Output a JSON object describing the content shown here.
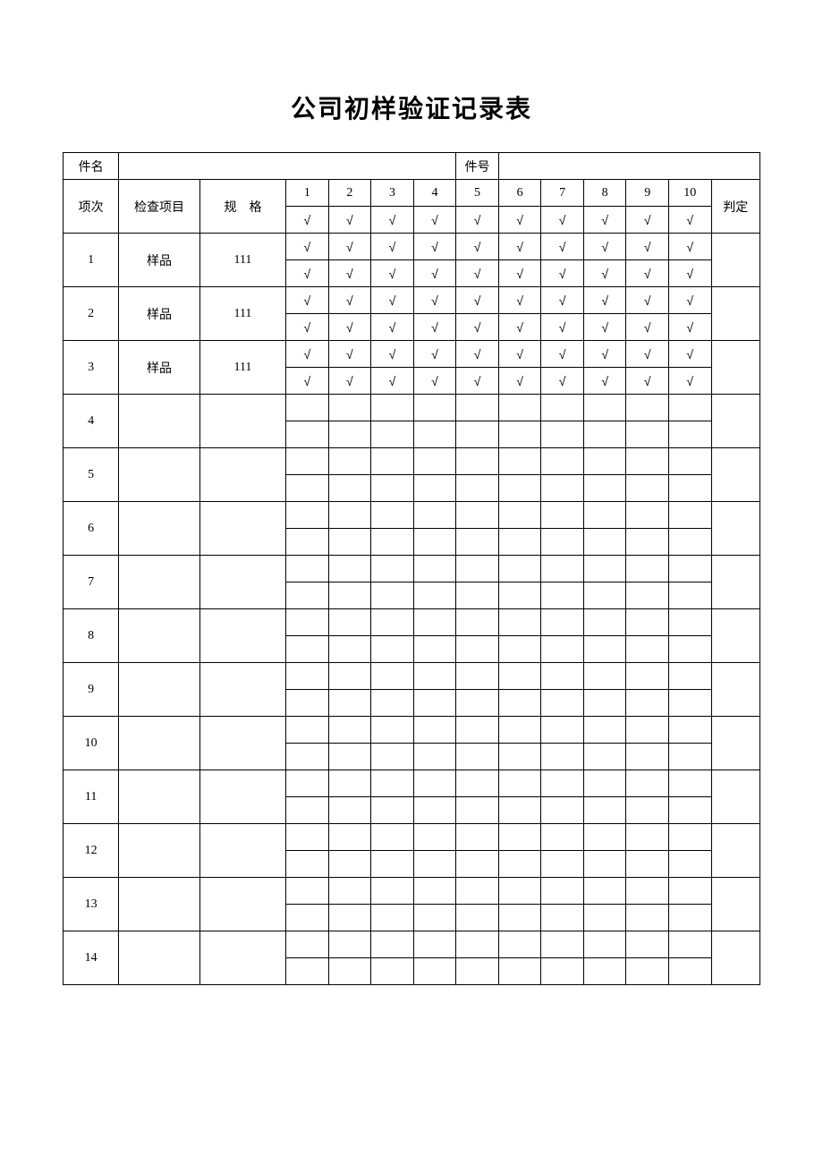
{
  "title": "公司初样验证记录表",
  "header": {
    "part_name_label": "件名",
    "part_no_label": "件号",
    "row_label": "项次",
    "item_label": "检查项目",
    "spec_label": "规　格",
    "judge_label": "判定",
    "cols": [
      "1",
      "2",
      "3",
      "4",
      "5",
      "6",
      "7",
      "8",
      "9",
      "10"
    ]
  },
  "check_mark": "√",
  "rows": [
    {
      "no": "1",
      "item": "样品",
      "spec": "111",
      "top": [
        "√",
        "√",
        "√",
        "√",
        "√",
        "√",
        "√",
        "√",
        "√",
        "√"
      ],
      "bot": [
        "√",
        "√",
        "√",
        "√",
        "√",
        "√",
        "√",
        "√",
        "√",
        "√"
      ],
      "judge": ""
    },
    {
      "no": "2",
      "item": "样品",
      "spec": "111",
      "top": [
        "√",
        "√",
        "√",
        "√",
        "√",
        "√",
        "√",
        "√",
        "√",
        "√"
      ],
      "bot": [
        "√",
        "√",
        "√",
        "√",
        "√",
        "√",
        "√",
        "√",
        "√",
        "√"
      ],
      "judge": ""
    },
    {
      "no": "3",
      "item": "样品",
      "spec": "111",
      "top": [
        "√",
        "√",
        "√",
        "√",
        "√",
        "√",
        "√",
        "√",
        "√",
        "√"
      ],
      "bot": [
        "√",
        "√",
        "√",
        "√",
        "√",
        "√",
        "√",
        "√",
        "√",
        "√"
      ],
      "judge": ""
    },
    {
      "no": "4",
      "item": "",
      "spec": "",
      "top": [
        "",
        "",
        "",
        "",
        "",
        "",
        "",
        "",
        "",
        ""
      ],
      "bot": [
        "",
        "",
        "",
        "",
        "",
        "",
        "",
        "",
        "",
        ""
      ],
      "judge": ""
    },
    {
      "no": "5",
      "item": "",
      "spec": "",
      "top": [
        "",
        "",
        "",
        "",
        "",
        "",
        "",
        "",
        "",
        ""
      ],
      "bot": [
        "",
        "",
        "",
        "",
        "",
        "",
        "",
        "",
        "",
        ""
      ],
      "judge": ""
    },
    {
      "no": "6",
      "item": "",
      "spec": "",
      "top": [
        "",
        "",
        "",
        "",
        "",
        "",
        "",
        "",
        "",
        ""
      ],
      "bot": [
        "",
        "",
        "",
        "",
        "",
        "",
        "",
        "",
        "",
        ""
      ],
      "judge": ""
    },
    {
      "no": "7",
      "item": "",
      "spec": "",
      "top": [
        "",
        "",
        "",
        "",
        "",
        "",
        "",
        "",
        "",
        ""
      ],
      "bot": [
        "",
        "",
        "",
        "",
        "",
        "",
        "",
        "",
        "",
        ""
      ],
      "judge": ""
    },
    {
      "no": "8",
      "item": "",
      "spec": "",
      "top": [
        "",
        "",
        "",
        "",
        "",
        "",
        "",
        "",
        "",
        ""
      ],
      "bot": [
        "",
        "",
        "",
        "",
        "",
        "",
        "",
        "",
        "",
        ""
      ],
      "judge": ""
    },
    {
      "no": "9",
      "item": "",
      "spec": "",
      "top": [
        "",
        "",
        "",
        "",
        "",
        "",
        "",
        "",
        "",
        ""
      ],
      "bot": [
        "",
        "",
        "",
        "",
        "",
        "",
        "",
        "",
        "",
        ""
      ],
      "judge": ""
    },
    {
      "no": "10",
      "item": "",
      "spec": "",
      "top": [
        "",
        "",
        "",
        "",
        "",
        "",
        "",
        "",
        "",
        ""
      ],
      "bot": [
        "",
        "",
        "",
        "",
        "",
        "",
        "",
        "",
        "",
        ""
      ],
      "judge": ""
    },
    {
      "no": "11",
      "item": "",
      "spec": "",
      "top": [
        "",
        "",
        "",
        "",
        "",
        "",
        "",
        "",
        "",
        ""
      ],
      "bot": [
        "",
        "",
        "",
        "",
        "",
        "",
        "",
        "",
        "",
        ""
      ],
      "judge": ""
    },
    {
      "no": "12",
      "item": "",
      "spec": "",
      "top": [
        "",
        "",
        "",
        "",
        "",
        "",
        "",
        "",
        "",
        ""
      ],
      "bot": [
        "",
        "",
        "",
        "",
        "",
        "",
        "",
        "",
        "",
        ""
      ],
      "judge": ""
    },
    {
      "no": "13",
      "item": "",
      "spec": "",
      "top": [
        "",
        "",
        "",
        "",
        "",
        "",
        "",
        "",
        "",
        ""
      ],
      "bot": [
        "",
        "",
        "",
        "",
        "",
        "",
        "",
        "",
        "",
        ""
      ],
      "judge": ""
    },
    {
      "no": "14",
      "item": "",
      "spec": "",
      "top": [
        "",
        "",
        "",
        "",
        "",
        "",
        "",
        "",
        "",
        ""
      ],
      "bot": [
        "",
        "",
        "",
        "",
        "",
        "",
        "",
        "",
        "",
        ""
      ],
      "judge": ""
    }
  ]
}
